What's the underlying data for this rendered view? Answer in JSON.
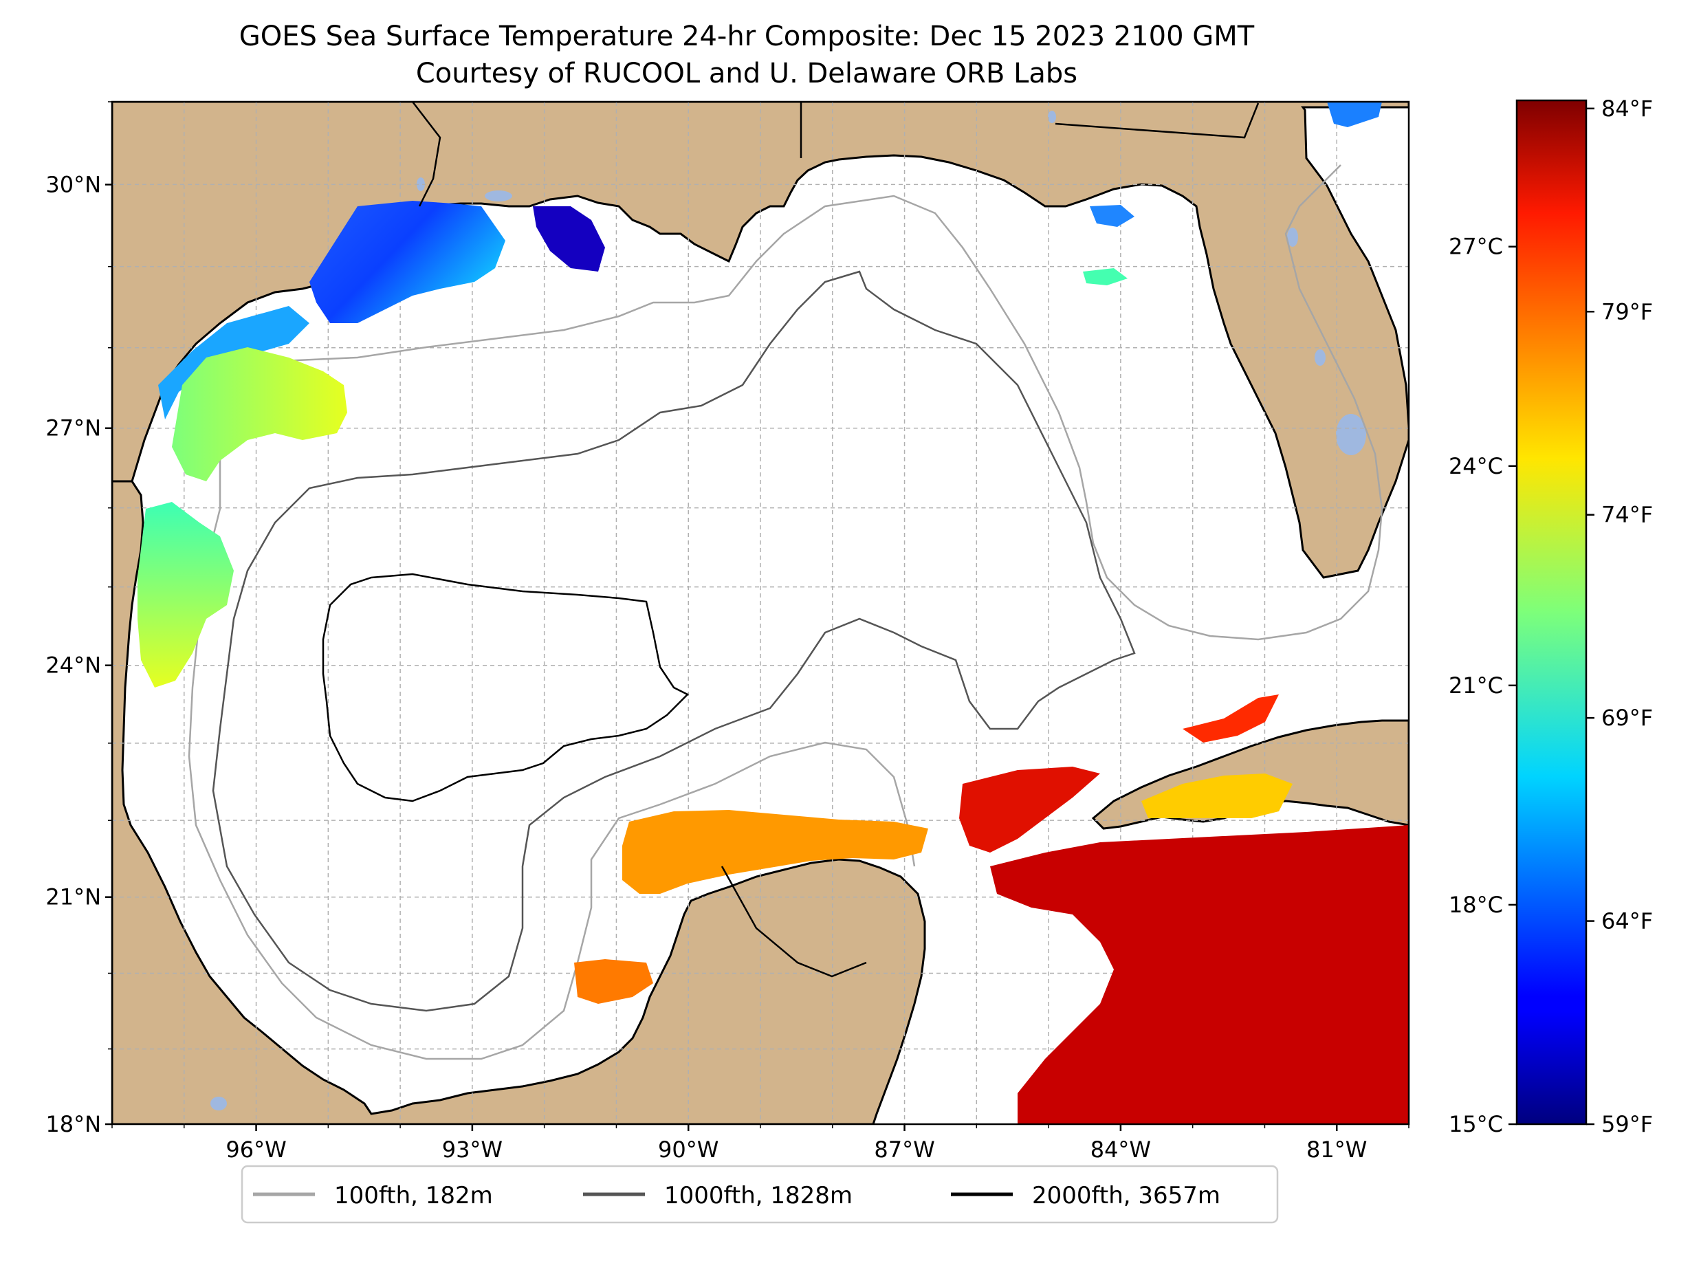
{
  "title": {
    "line1": "GOES Sea Surface Temperature 24-hr Composite: Dec 15 2023 2100 GMT",
    "line2": "Courtesy of RUCOOL and U. Delaware ORB Labs"
  },
  "map": {
    "extent": {
      "lon_min": -98.0,
      "lon_max": -80.0,
      "lat_min": 18.0,
      "lat_max": 31.0
    },
    "lat_ticks": [
      {
        "value": 30,
        "label": "30°N"
      },
      {
        "value": 27,
        "label": "27°N"
      },
      {
        "value": 24,
        "label": "24°N"
      },
      {
        "value": 21,
        "label": "21°N"
      },
      {
        "value": 18,
        "label": "18°N"
      }
    ],
    "lon_ticks": [
      {
        "value": -96,
        "label": "96°W"
      },
      {
        "value": -93,
        "label": "93°W"
      },
      {
        "value": -90,
        "label": "90°W"
      },
      {
        "value": -87,
        "label": "87°W"
      },
      {
        "value": -84,
        "label": "84°W"
      },
      {
        "value": -81,
        "label": "81°W"
      }
    ],
    "colors": {
      "land": "#d2b48c",
      "ocean": "#ffffff",
      "lakes": "#9fb8e0",
      "coast": "#000000",
      "grid": "#b0b0b0"
    }
  },
  "colorbar": {
    "colormap": "jet",
    "range_c": [
      15,
      29
    ],
    "celsius_ticks": [
      {
        "value": 15,
        "label": "15°C"
      },
      {
        "value": 18,
        "label": "18°C"
      },
      {
        "value": 21,
        "label": "21°C"
      },
      {
        "value": 24,
        "label": "24°C"
      },
      {
        "value": 27,
        "label": "27°C"
      }
    ],
    "fahrenheit_ticks": [
      {
        "value": 59,
        "label": "59°F"
      },
      {
        "value": 64,
        "label": "64°F"
      },
      {
        "value": 69,
        "label": "69°F"
      },
      {
        "value": 74,
        "label": "74°F"
      },
      {
        "value": 79,
        "label": "79°F"
      },
      {
        "value": 84,
        "label": "84°F"
      }
    ]
  },
  "legend": {
    "placement": "bottom-center",
    "items": [
      {
        "label": "100fth, 182m",
        "color": "#a6a6a6"
      },
      {
        "label": "1000fth, 1828m",
        "color": "#555555"
      },
      {
        "label": "2000fth, 3657m",
        "color": "#000000"
      }
    ]
  }
}
